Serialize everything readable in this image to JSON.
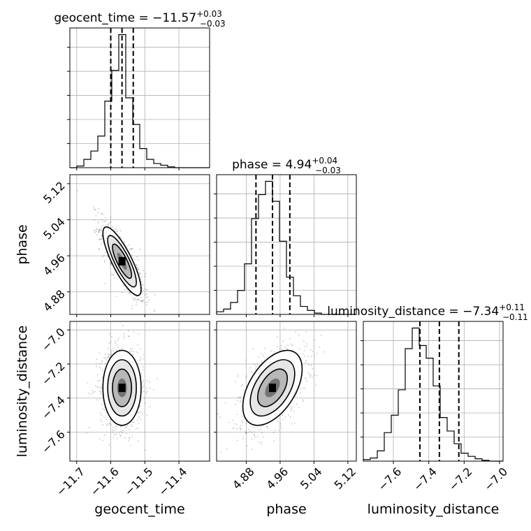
{
  "chart_data": {
    "type": "corner",
    "parameters": [
      {
        "name": "geocent_time",
        "xlim": [
          -11.72,
          -11.31
        ],
        "ticks": [
          -11.7,
          -11.6,
          -11.5,
          -11.4
        ],
        "tick_labels": [
          "−11.7",
          "−11.6",
          "−11.5",
          "−11.4"
        ],
        "title": {
          "prefix": "geocent_time = ",
          "value": "−11.57",
          "plus": "+0.03",
          "minus": "−0.03"
        },
        "quantiles": [
          -11.6,
          -11.567,
          -11.534
        ],
        "hist": {
          "edges_start": -11.72,
          "bin_width": 0.0205,
          "counts": [
            0,
            2,
            10,
            20,
            38,
            80,
            117,
            160,
            84,
            52,
            23,
            10,
            5,
            3,
            1,
            0,
            0,
            0,
            0,
            0
          ]
        }
      },
      {
        "name": "phase",
        "xlim": [
          4.81,
          5.14
        ],
        "ticks": [
          4.88,
          4.96,
          5.04,
          5.12
        ],
        "tick_labels": [
          "4.88",
          "4.96",
          "5.04",
          "5.12"
        ],
        "title": {
          "prefix": "phase = ",
          "value": "4.94",
          "plus": "+0.04",
          "minus": "−0.03"
        },
        "quantiles": [
          4.903,
          4.942,
          4.983
        ],
        "hist": {
          "edges_start": 4.81,
          "bin_width": 0.0165,
          "counts": [
            2,
            4,
            9,
            18,
            38,
            72,
            90,
            100,
            85,
            55,
            28,
            14,
            6,
            3,
            1,
            0,
            0,
            0,
            0,
            0
          ]
        }
      },
      {
        "name": "luminosity_distance",
        "xlim": [
          -7.77,
          -6.98
        ],
        "ticks": [
          -7.6,
          -7.4,
          -7.2,
          -7.0
        ],
        "tick_labels": [
          "−7.6",
          "−7.4",
          "−7.2",
          "−7.0"
        ],
        "title": {
          "prefix": "luminosity_distance = ",
          "value": "−7.34",
          "plus": "+0.11",
          "minus": "−0.11"
        },
        "quantiles": [
          -7.45,
          -7.34,
          -7.23
        ],
        "hist": {
          "edges_start": -7.77,
          "bin_width": 0.0395,
          "counts": [
            2,
            4,
            13,
            36,
            58,
            90,
            142,
            168,
            146,
            130,
            95,
            55,
            38,
            22,
            10,
            6,
            3,
            1,
            0,
            0
          ]
        }
      }
    ],
    "pairs": [
      {
        "row": 1,
        "col": 0,
        "y": "phase",
        "x": "geocent_time",
        "center": [
          -11.567,
          4.948
        ],
        "sd": [
          0.028,
          0.038
        ],
        "corr": -0.82
      },
      {
        "row": 2,
        "col": 0,
        "y": "luminosity_distance",
        "x": "geocent_time",
        "center": [
          -11.567,
          -7.34
        ],
        "sd": [
          0.028,
          0.11
        ],
        "corr": 0.0
      },
      {
        "row": 2,
        "col": 1,
        "y": "luminosity_distance",
        "x": "phase",
        "center": [
          4.942,
          -7.34
        ],
        "sd": [
          0.035,
          0.11
        ],
        "corr": 0.5
      }
    ],
    "ylim_row1": [
      4.83,
      5.14
    ],
    "ylim_row2": [
      -7.77,
      -6.95
    ],
    "yticks_row1": [
      4.88,
      4.96,
      5.04,
      5.12
    ],
    "yticklabels_row1": [
      "4.88",
      "4.96",
      "5.04",
      "5.12"
    ],
    "yticks_row2": [
      -7.6,
      -7.4,
      -7.2,
      -7.0
    ],
    "yticklabels_row2": [
      "−7.6",
      "−7.4",
      "−7.2",
      "−7.0"
    ],
    "xlabels": [
      "geocent_time",
      "phase",
      "luminosity_distance"
    ],
    "ylabels": [
      "phase",
      "luminosity_distance"
    ],
    "grid": true,
    "colors": {
      "line": "#000000",
      "grid": "#b0b0b0",
      "scatter": "#000000"
    }
  }
}
